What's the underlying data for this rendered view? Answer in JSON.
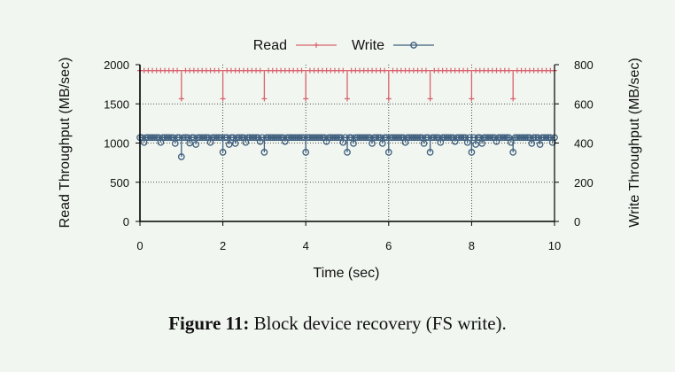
{
  "caption": {
    "label": "Figure 11:",
    "text": "Block device recovery (FS write)."
  },
  "colors": {
    "read": "#d9636e",
    "write": "#3f5f7e",
    "axis": "#000000",
    "grid": "#222222"
  },
  "chart_data": {
    "type": "line",
    "xlabel": "Time (sec)",
    "ylabel": "Read Throughput (MB/sec)",
    "y2label": "Write Throughput (MB/sec)",
    "xlim": [
      0,
      10
    ],
    "ylim": [
      0,
      2000
    ],
    "y2lim": [
      0,
      800
    ],
    "xticks": [
      0,
      2,
      4,
      6,
      8,
      10
    ],
    "yticks": [
      0,
      500,
      1000,
      1500,
      2000
    ],
    "y2ticks": [
      0,
      200,
      400,
      600,
      800
    ],
    "grid": "dotted at x ticks and left y ticks",
    "legend": "top-center",
    "series": [
      {
        "name": "Read",
        "axis": "left",
        "marker": "plus",
        "color": "#d9636e",
        "baseline": 1925,
        "dips": [
          {
            "x": 1.0,
            "y": 1565
          },
          {
            "x": 2.0,
            "y": 1565
          },
          {
            "x": 3.0,
            "y": 1565
          },
          {
            "x": 4.0,
            "y": 1565
          },
          {
            "x": 5.0,
            "y": 1565
          },
          {
            "x": 6.0,
            "y": 1565
          },
          {
            "x": 7.0,
            "y": 1565
          },
          {
            "x": 8.0,
            "y": 1565
          },
          {
            "x": 9.0,
            "y": 1565
          }
        ]
      },
      {
        "name": "Write",
        "axis": "right",
        "marker": "circle",
        "color": "#3f5f7e",
        "baseline": 428,
        "dips": [
          {
            "x": 0.1,
            "y": 403
          },
          {
            "x": 0.5,
            "y": 403
          },
          {
            "x": 0.85,
            "y": 398
          },
          {
            "x": 1.0,
            "y": 330
          },
          {
            "x": 1.2,
            "y": 400
          },
          {
            "x": 1.35,
            "y": 393
          },
          {
            "x": 1.7,
            "y": 403
          },
          {
            "x": 2.0,
            "y": 353
          },
          {
            "x": 2.15,
            "y": 393
          },
          {
            "x": 2.3,
            "y": 398
          },
          {
            "x": 2.55,
            "y": 403
          },
          {
            "x": 2.9,
            "y": 408
          },
          {
            "x": 3.0,
            "y": 353
          },
          {
            "x": 3.5,
            "y": 408
          },
          {
            "x": 4.0,
            "y": 353
          },
          {
            "x": 4.5,
            "y": 408
          },
          {
            "x": 4.9,
            "y": 403
          },
          {
            "x": 5.0,
            "y": 353
          },
          {
            "x": 5.15,
            "y": 398
          },
          {
            "x": 5.6,
            "y": 398
          },
          {
            "x": 5.85,
            "y": 398
          },
          {
            "x": 6.0,
            "y": 353
          },
          {
            "x": 6.4,
            "y": 403
          },
          {
            "x": 6.85,
            "y": 398
          },
          {
            "x": 7.0,
            "y": 353
          },
          {
            "x": 7.25,
            "y": 403
          },
          {
            "x": 7.6,
            "y": 408
          },
          {
            "x": 7.9,
            "y": 403
          },
          {
            "x": 8.0,
            "y": 353
          },
          {
            "x": 8.1,
            "y": 393
          },
          {
            "x": 8.25,
            "y": 398
          },
          {
            "x": 8.6,
            "y": 408
          },
          {
            "x": 8.95,
            "y": 403
          },
          {
            "x": 9.0,
            "y": 353
          },
          {
            "x": 9.45,
            "y": 398
          },
          {
            "x": 9.65,
            "y": 393
          },
          {
            "x": 9.95,
            "y": 403
          }
        ]
      }
    ]
  }
}
